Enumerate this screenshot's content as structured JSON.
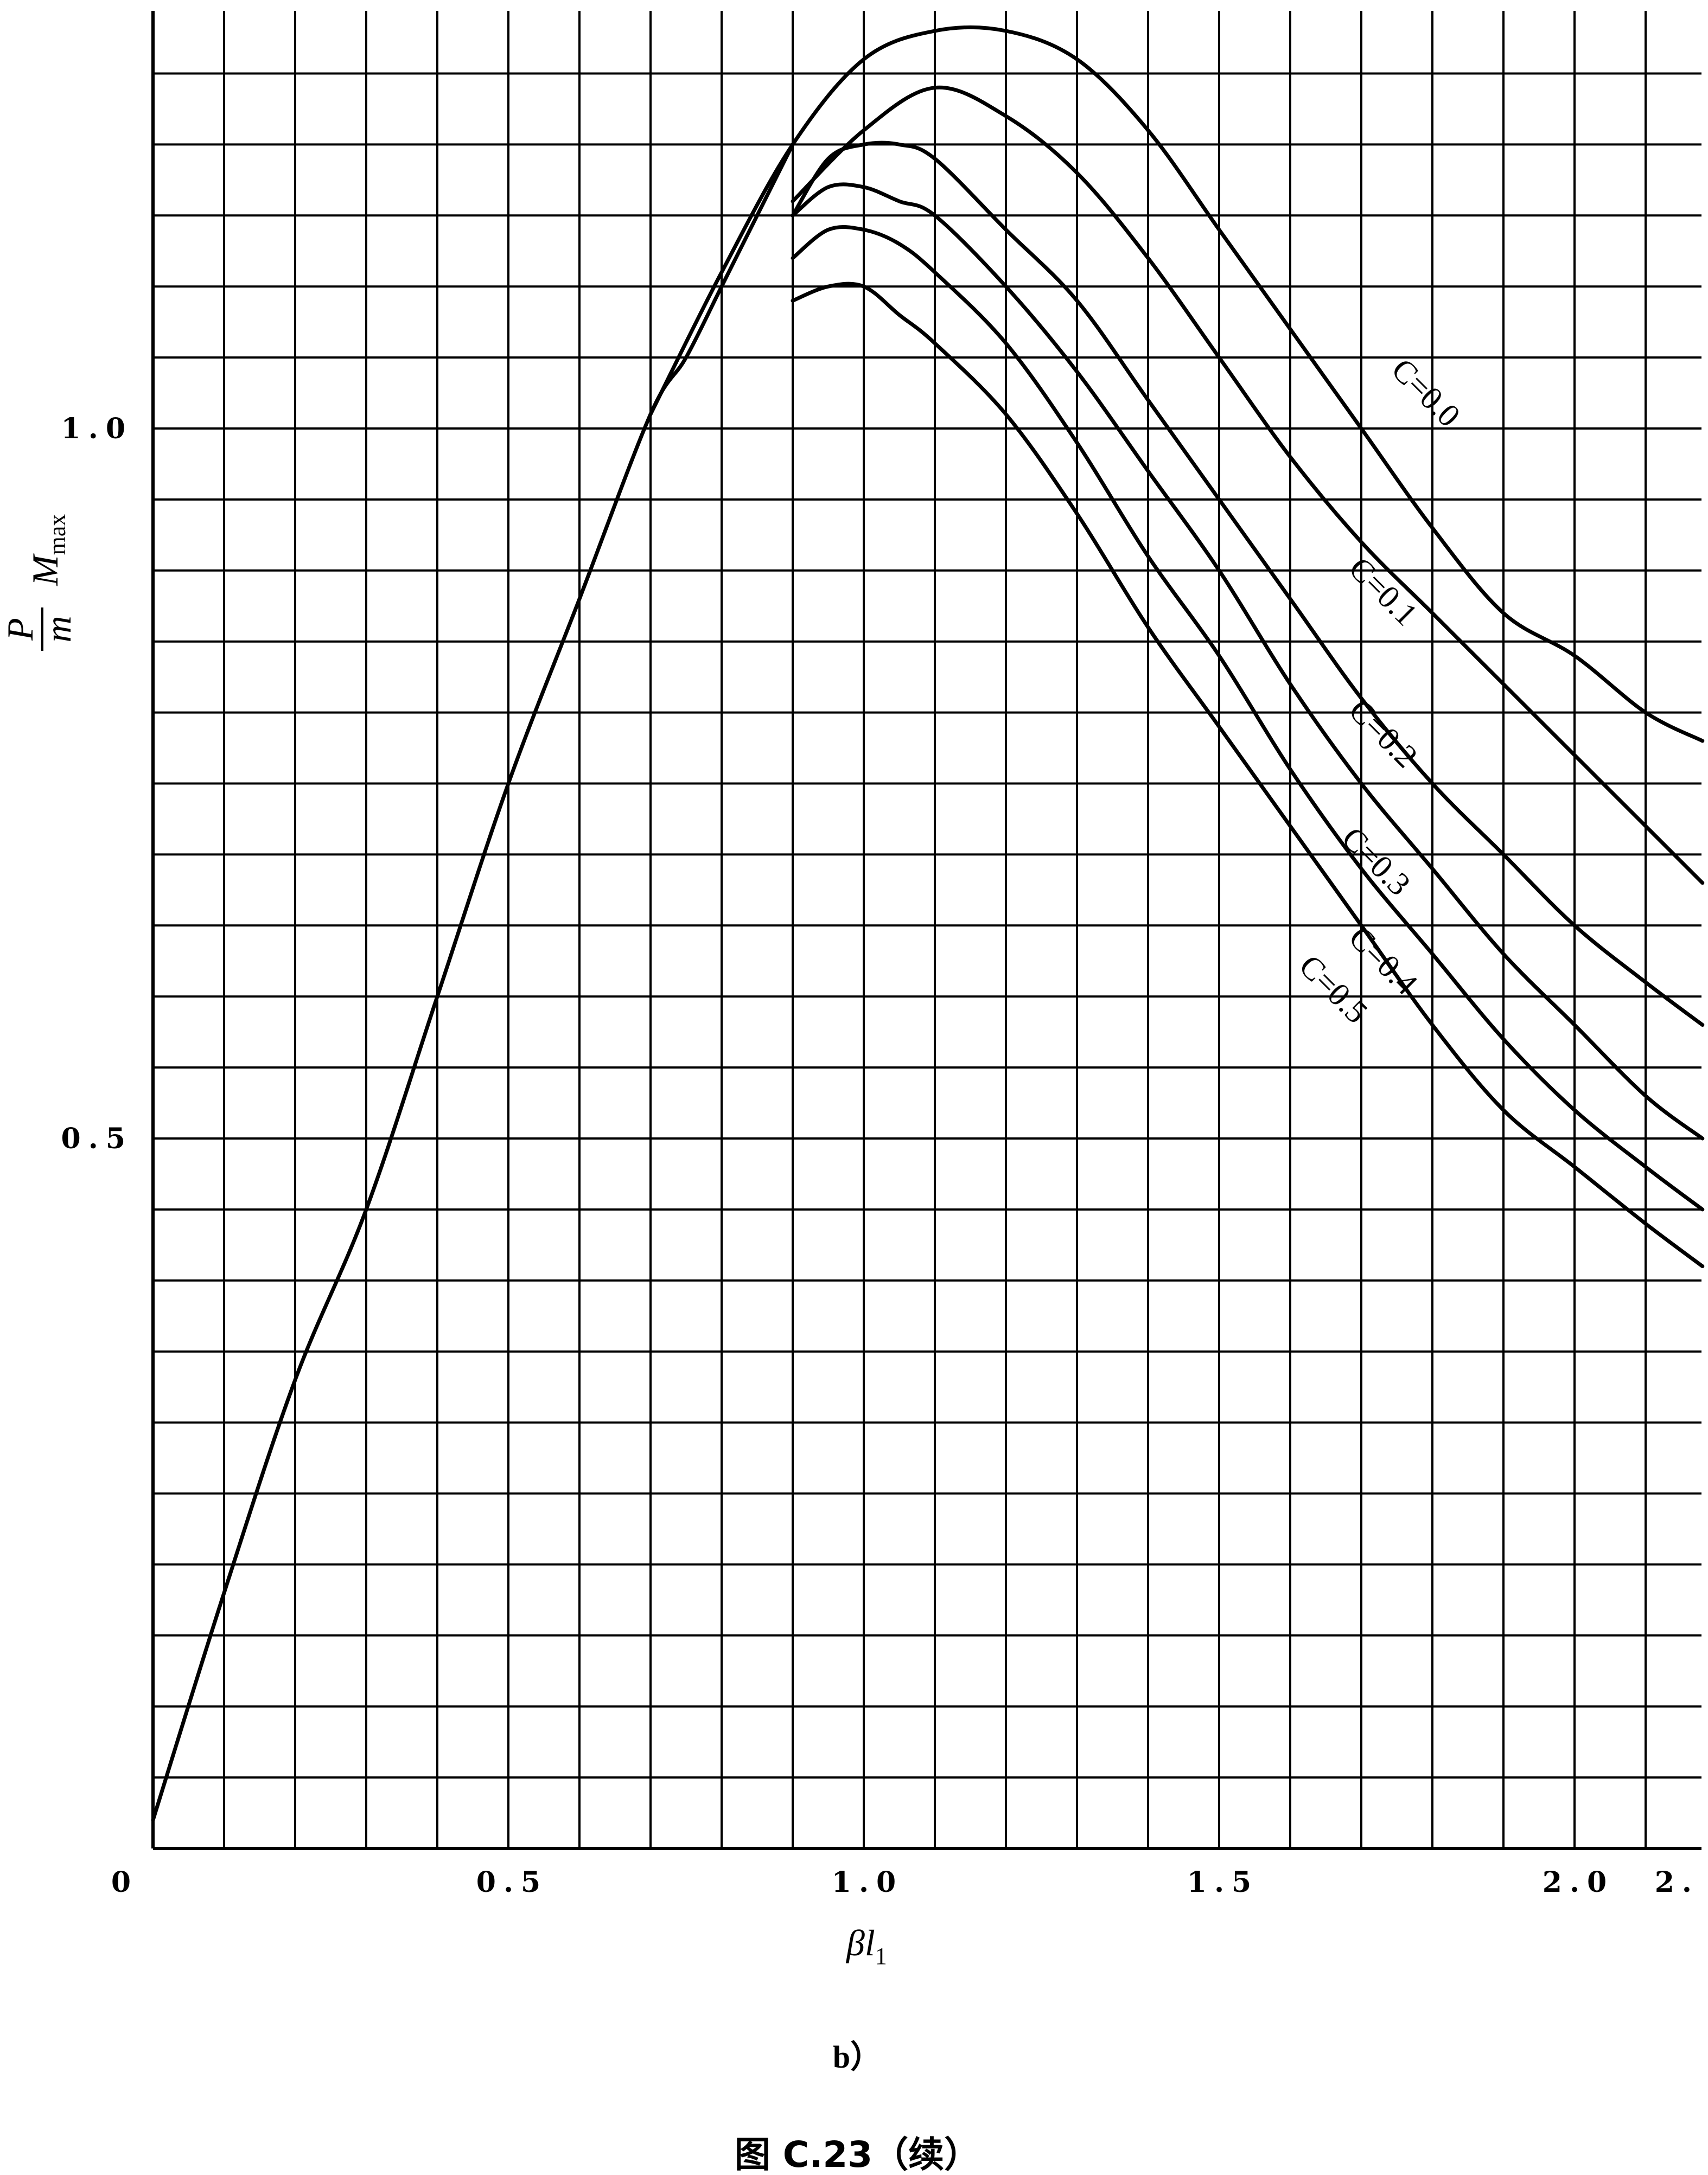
{
  "chart_data": {
    "type": "line",
    "xlim": [
      0,
      2.18
    ],
    "ylim": [
      0,
      1.3
    ],
    "grid": true,
    "x_ticks": [
      {
        "value": 0,
        "label": "0"
      },
      {
        "value": 0.5,
        "label": "0.5"
      },
      {
        "value": 1.0,
        "label": "1.0"
      },
      {
        "value": 1.5,
        "label": "1.5"
      },
      {
        "value": 2.0,
        "label": "2.0"
      },
      {
        "value": 2.18,
        "label": "2."
      }
    ],
    "y_ticks": [
      {
        "value": 0.5,
        "label": "0.5"
      },
      {
        "value": 1.0,
        "label": "1.0"
      }
    ],
    "xlabel": {
      "main": "βl",
      "sub": "1"
    },
    "ylabel": {
      "top": "P",
      "bottom": "m",
      "main": "M",
      "sub": "max"
    },
    "base_curve": {
      "x": [
        0.0,
        0.1,
        0.2,
        0.3,
        0.4,
        0.5,
        0.6,
        0.7,
        0.75,
        0.8,
        0.85,
        0.9
      ],
      "y": [
        0.02,
        0.18,
        0.33,
        0.45,
        0.6,
        0.75,
        0.88,
        1.01,
        1.05,
        1.1,
        1.15,
        1.2
      ]
    },
    "series": [
      {
        "name": "C=0.0",
        "x": [
          0.7,
          0.8,
          0.9,
          1.0,
          1.1,
          1.2,
          1.3,
          1.4,
          1.5,
          1.6,
          1.7,
          1.8,
          1.9,
          2.0,
          2.1,
          2.18
        ],
        "y": [
          1.01,
          1.11,
          1.2,
          1.26,
          1.28,
          1.28,
          1.26,
          1.21,
          1.14,
          1.07,
          1.0,
          0.93,
          0.87,
          0.84,
          0.8,
          0.78
        ]
      },
      {
        "name": "C=0.1",
        "x": [
          0.9,
          1.0,
          1.1,
          1.2,
          1.3,
          1.4,
          1.5,
          1.6,
          1.7,
          1.8,
          1.9,
          2.0,
          2.1,
          2.18
        ],
        "y": [
          1.16,
          1.21,
          1.24,
          1.22,
          1.18,
          1.12,
          1.05,
          0.98,
          0.92,
          0.87,
          0.82,
          0.77,
          0.72,
          0.68
        ]
      },
      {
        "name": "C=0.2",
        "x": [
          0.9,
          0.95,
          1.0,
          1.05,
          1.1,
          1.2,
          1.3,
          1.4,
          1.5,
          1.6,
          1.7,
          1.8,
          1.9,
          2.0,
          2.1,
          2.18
        ],
        "y": [
          1.15,
          1.19,
          1.2,
          1.2,
          1.19,
          1.14,
          1.09,
          1.02,
          0.95,
          0.88,
          0.81,
          0.75,
          0.7,
          0.65,
          0.61,
          0.58
        ]
      },
      {
        "name": "C=0.3",
        "x": [
          0.9,
          0.95,
          1.0,
          1.05,
          1.1,
          1.2,
          1.3,
          1.4,
          1.5,
          1.6,
          1.7,
          1.8,
          1.9,
          2.0,
          2.1,
          2.18
        ],
        "y": [
          1.15,
          1.17,
          1.17,
          1.16,
          1.15,
          1.1,
          1.04,
          0.97,
          0.9,
          0.82,
          0.75,
          0.69,
          0.63,
          0.58,
          0.53,
          0.5
        ]
      },
      {
        "name": "C=0.4",
        "x": [
          0.9,
          0.95,
          1.0,
          1.05,
          1.1,
          1.2,
          1.3,
          1.4,
          1.5,
          1.6,
          1.7,
          1.8,
          1.9,
          2.0,
          2.1,
          2.18
        ],
        "y": [
          1.12,
          1.14,
          1.14,
          1.13,
          1.11,
          1.06,
          0.99,
          0.91,
          0.84,
          0.76,
          0.69,
          0.63,
          0.57,
          0.52,
          0.48,
          0.45
        ]
      },
      {
        "name": "C=0.5",
        "x": [
          0.9,
          0.95,
          1.0,
          1.05,
          1.1,
          1.2,
          1.3,
          1.4,
          1.5,
          1.6,
          1.7,
          1.8,
          1.9,
          2.0,
          2.1,
          2.18
        ],
        "y": [
          1.09,
          1.1,
          1.1,
          1.08,
          1.06,
          1.01,
          0.94,
          0.86,
          0.79,
          0.72,
          0.65,
          0.58,
          0.52,
          0.48,
          0.44,
          0.41
        ]
      }
    ],
    "series_labels": [
      {
        "text": "C=0.0",
        "x": 1.74,
        "y": 1.04
      },
      {
        "text": "C=0.1",
        "x": 1.68,
        "y": 0.9
      },
      {
        "text": "C=0.2",
        "x": 1.68,
        "y": 0.8
      },
      {
        "text": "C=0.3",
        "x": 1.67,
        "y": 0.71
      },
      {
        "text": "C=0.4",
        "x": 1.68,
        "y": 0.64
      },
      {
        "text": "C=0.5",
        "x": 1.61,
        "y": 0.62
      }
    ]
  },
  "caption_sub": "b）",
  "caption": "图 C.23（续）"
}
